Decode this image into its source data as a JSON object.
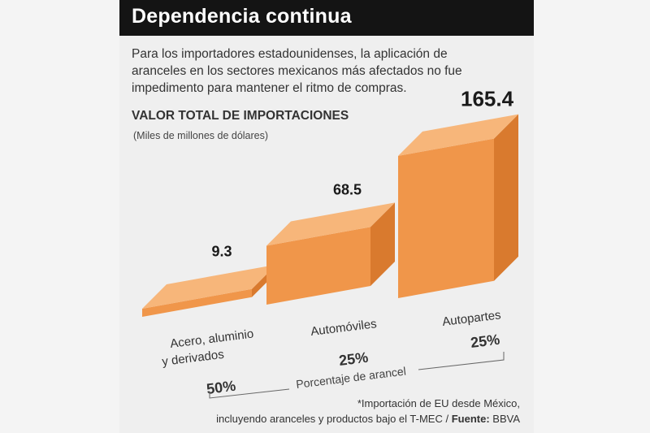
{
  "header": {
    "title": "Dependencia continua",
    "intro": "Para los importadores estadounidenses, la aplicación de aranceles en los sectores mexicanos más afectados no fue impedimento para mantener el ritmo de compras."
  },
  "chart_data": {
    "type": "bar",
    "title": "VALOR TOTAL DE IMPORTACIONES",
    "unit": "(Miles de millones de dólares)",
    "categories": [
      [
        "Acero, aluminio",
        "y derivados"
      ],
      [
        "Automóviles"
      ],
      [
        "Autopartes"
      ]
    ],
    "values": [
      9.3,
      68.5,
      165.4
    ],
    "value_labels": [
      "9.3",
      "68.5",
      "165.4"
    ],
    "tariff_labels": [
      "50%",
      "25%",
      "25%"
    ],
    "xlabel": "Porcentaje de arancel",
    "ylim": [
      0,
      170
    ]
  },
  "footnote": {
    "line1": "*Importación de EU desde México,",
    "line2_prefix": "incluyendo aranceles y productos bajo el T-MEC / ",
    "source_label": "Fuente:",
    "source_value": " BBVA"
  },
  "colors": {
    "bar_top": "#f7b67a",
    "bar_front": "#f0964a",
    "bar_side": "#d97a2e"
  }
}
